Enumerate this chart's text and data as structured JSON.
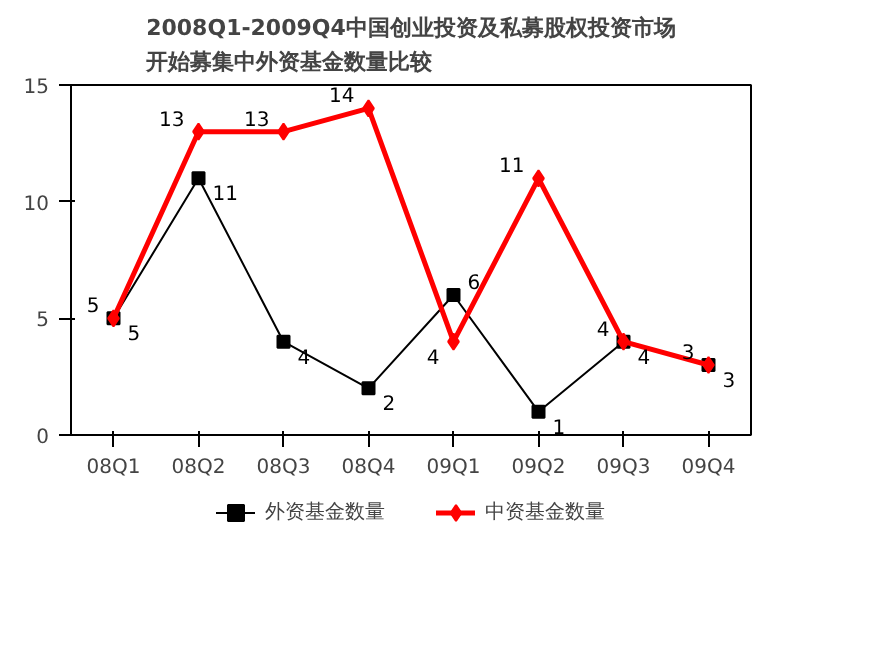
{
  "chart_data": {
    "type": "line",
    "title": "2008Q1-2009Q4中国创业投资及私募股权投资市场开始募集中外资基金数量比较",
    "categories": [
      "08Q1",
      "08Q2",
      "08Q3",
      "08Q4",
      "09Q1",
      "09Q2",
      "09Q3",
      "09Q4"
    ],
    "series": [
      {
        "name": "外资基金数量",
        "color": "#000000",
        "marker": "square",
        "values": [
          5,
          11,
          4,
          2,
          6,
          1,
          4,
          3
        ]
      },
      {
        "name": "中资基金数量",
        "color": "#ff0000",
        "marker": "diamond",
        "values": [
          5,
          13,
          13,
          14,
          4,
          11,
          4,
          3
        ]
      }
    ],
    "ylim": [
      0,
      15
    ],
    "yticks": [
      0,
      5,
      10,
      15
    ],
    "legend": "bottom",
    "data_labels": true,
    "line_style": "solid"
  }
}
